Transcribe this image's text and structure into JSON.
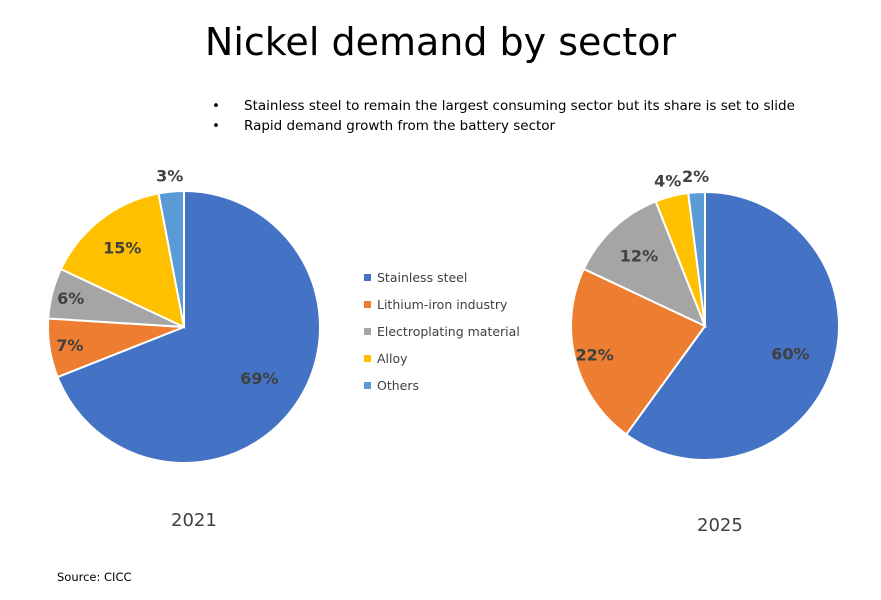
{
  "title": "Nickel demand by sector",
  "bullets": [
    "Stainless steel to remain the largest consuming sector but its share is set to slide",
    "Rapid demand growth from the battery sector"
  ],
  "source": "Source: CICC",
  "chart_data": [
    {
      "type": "pie",
      "title": "2021",
      "categories": [
        "Stainless steel",
        "Lithium-iron industry",
        "Electroplating material",
        "Alloy",
        "Others"
      ],
      "values": [
        69,
        7,
        6,
        15,
        3
      ],
      "labels": [
        "69%",
        "7%",
        "6%",
        "15%",
        "3%"
      ],
      "colors": [
        "#4472C4",
        "#ED7D31",
        "#A5A5A5",
        "#FFC000",
        "#5B9BD5"
      ],
      "legend": "center"
    },
    {
      "type": "pie",
      "title": "2025",
      "categories": [
        "Stainless steel",
        "Lithium-iron industry",
        "Electroplating material",
        "Alloy",
        "Others"
      ],
      "values": [
        60,
        22,
        12,
        4,
        2
      ],
      "labels": [
        "60%",
        "22%",
        "12%",
        "4%",
        "2%"
      ],
      "colors": [
        "#4472C4",
        "#ED7D31",
        "#A5A5A5",
        "#FFC000",
        "#5B9BD5"
      ],
      "legend": "center"
    }
  ]
}
